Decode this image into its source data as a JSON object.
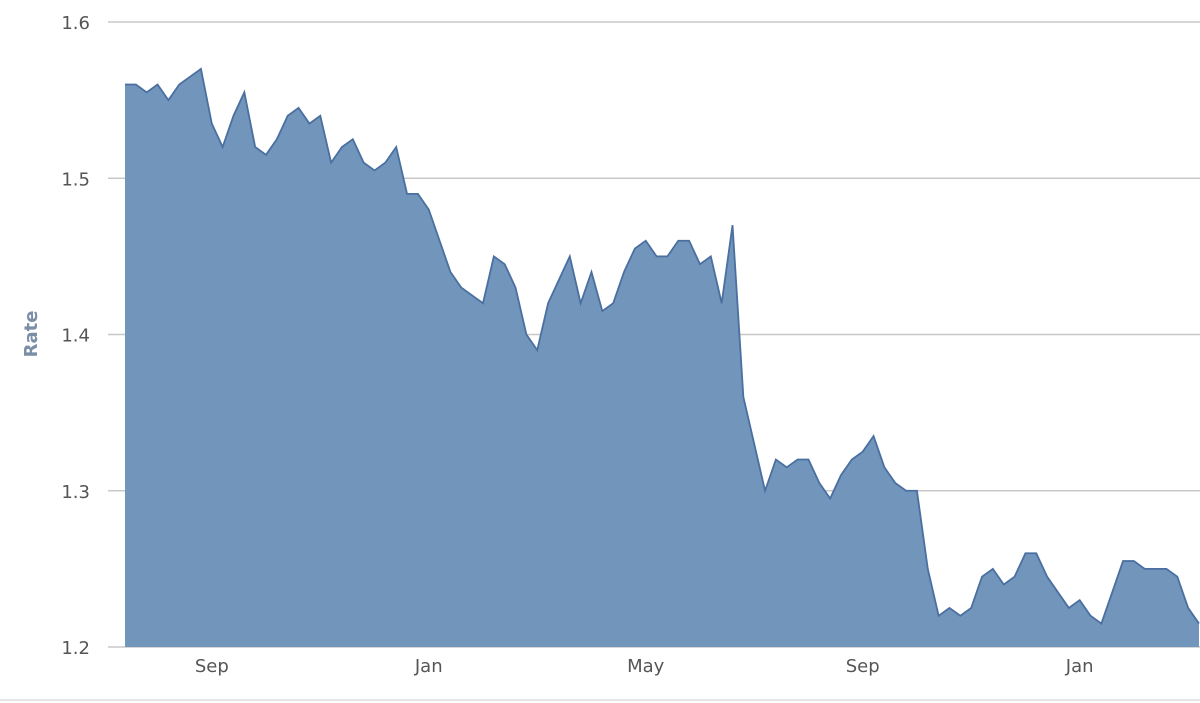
{
  "chart_data": {
    "type": "area",
    "y_label": "Rate",
    "categories": [
      null,
      null,
      null,
      null,
      null,
      null,
      null,
      null,
      "Sep",
      null,
      null,
      null,
      null,
      null,
      null,
      null,
      null,
      null,
      null,
      null,
      null,
      null,
      null,
      null,
      null,
      null,
      null,
      null,
      "Jan",
      null,
      null,
      null,
      null,
      null,
      null,
      null,
      null,
      null,
      null,
      null,
      null,
      null,
      null,
      null,
      null,
      null,
      null,
      null,
      "May",
      null,
      null,
      null,
      null,
      null,
      null,
      null,
      null,
      null,
      null,
      null,
      null,
      null,
      null,
      null,
      null,
      null,
      null,
      null,
      "Sep",
      null,
      null,
      null,
      null,
      null,
      null,
      null,
      null,
      null,
      null,
      null,
      null,
      null,
      null,
      null,
      null,
      null,
      null,
      null,
      "Jan",
      null,
      null,
      null,
      null,
      null,
      null,
      null,
      null,
      null,
      null,
      null
    ],
    "values": [
      1.56,
      1.56,
      1.555,
      1.56,
      1.55,
      1.56,
      1.565,
      1.57,
      1.535,
      1.52,
      1.54,
      1.555,
      1.52,
      1.515,
      1.525,
      1.54,
      1.545,
      1.535,
      1.54,
      1.51,
      1.52,
      1.525,
      1.51,
      1.505,
      1.51,
      1.52,
      1.49,
      1.49,
      1.48,
      1.46,
      1.44,
      1.43,
      1.425,
      1.42,
      1.45,
      1.445,
      1.43,
      1.4,
      1.39,
      1.42,
      1.435,
      1.45,
      1.42,
      1.44,
      1.415,
      1.42,
      1.44,
      1.455,
      1.46,
      1.45,
      1.45,
      1.46,
      1.46,
      1.445,
      1.45,
      1.42,
      1.47,
      1.36,
      1.33,
      1.3,
      1.32,
      1.315,
      1.32,
      1.32,
      1.305,
      1.295,
      1.31,
      1.32,
      1.325,
      1.335,
      1.315,
      1.305,
      1.3,
      1.3,
      1.25,
      1.22,
      1.225,
      1.22,
      1.225,
      1.245,
      1.25,
      1.24,
      1.245,
      1.26,
      1.26,
      1.245,
      1.235,
      1.225,
      1.23,
      1.22,
      1.215,
      1.235,
      1.255,
      1.255,
      1.25,
      1.25,
      1.25,
      1.245,
      1.225,
      1.215
    ],
    "color": "#7195bb",
    "line_color": "#4a6fa0",
    "ylim": [
      1.2,
      1.6
    ],
    "yticks": [
      1.2,
      1.3,
      1.4,
      1.5,
      1.6
    ],
    "grid": true
  }
}
